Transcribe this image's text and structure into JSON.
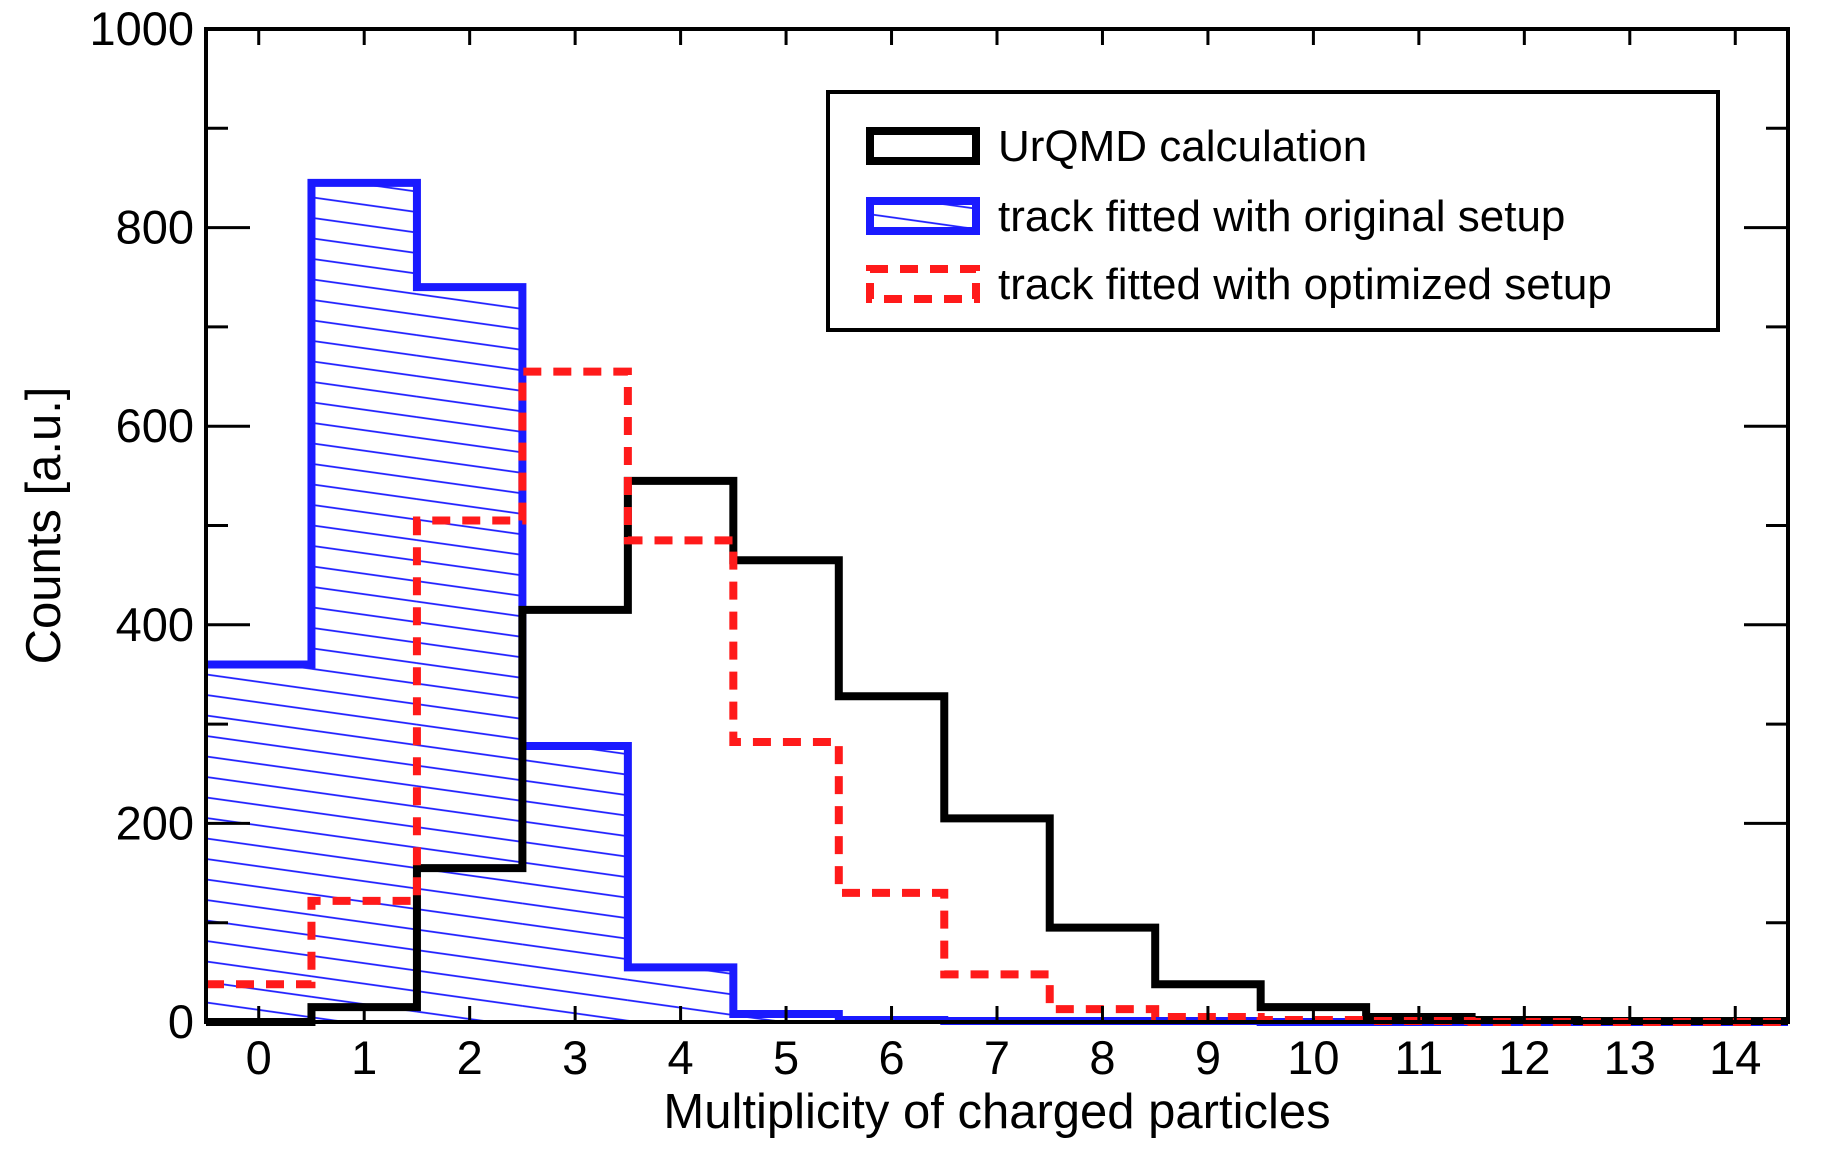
{
  "chart_data": {
    "type": "histogram",
    "title": "",
    "xlabel": "Multiplicity of charged particles",
    "ylabel": "Counts [a.u.]",
    "xlim": [
      -0.5,
      14.5
    ],
    "ylim": [
      0,
      1000
    ],
    "x_ticks": [
      0,
      1,
      2,
      3,
      4,
      5,
      6,
      7,
      8,
      9,
      10,
      11,
      12,
      13,
      14
    ],
    "x_tick_labels": [
      "0",
      "1",
      "2",
      "3",
      "4",
      "5",
      "6",
      "7",
      "8",
      "9",
      "10",
      "11",
      "12",
      "13",
      "14"
    ],
    "y_ticks": [
      0,
      200,
      400,
      600,
      800,
      1000
    ],
    "y_tick_labels": [
      "0",
      "200",
      "400",
      "600",
      "800",
      "1000"
    ],
    "grid": false,
    "legend_position": "top-right",
    "categories": [
      0,
      1,
      2,
      3,
      4,
      5,
      6,
      7,
      8,
      9,
      10,
      11,
      12,
      13,
      14
    ],
    "series": [
      {
        "name": "UrQMD calculation",
        "style": "solid-step",
        "color": "#000000",
        "values": [
          0,
          15,
          155,
          415,
          545,
          465,
          328,
          205,
          95,
          38,
          15,
          5,
          2,
          1,
          1
        ]
      },
      {
        "name": "track fitted with original setup",
        "style": "hatched-step",
        "color": "#1a1aff",
        "values": [
          360,
          845,
          740,
          278,
          55,
          8,
          2,
          1,
          1,
          1,
          0,
          0,
          0,
          0,
          0
        ]
      },
      {
        "name": "track fitted with optimized setup",
        "style": "dashed-step",
        "color": "#ff1a1a",
        "values": [
          38,
          122,
          505,
          655,
          485,
          282,
          130,
          48,
          13,
          5,
          2,
          1,
          0,
          0,
          0
        ]
      }
    ]
  }
}
